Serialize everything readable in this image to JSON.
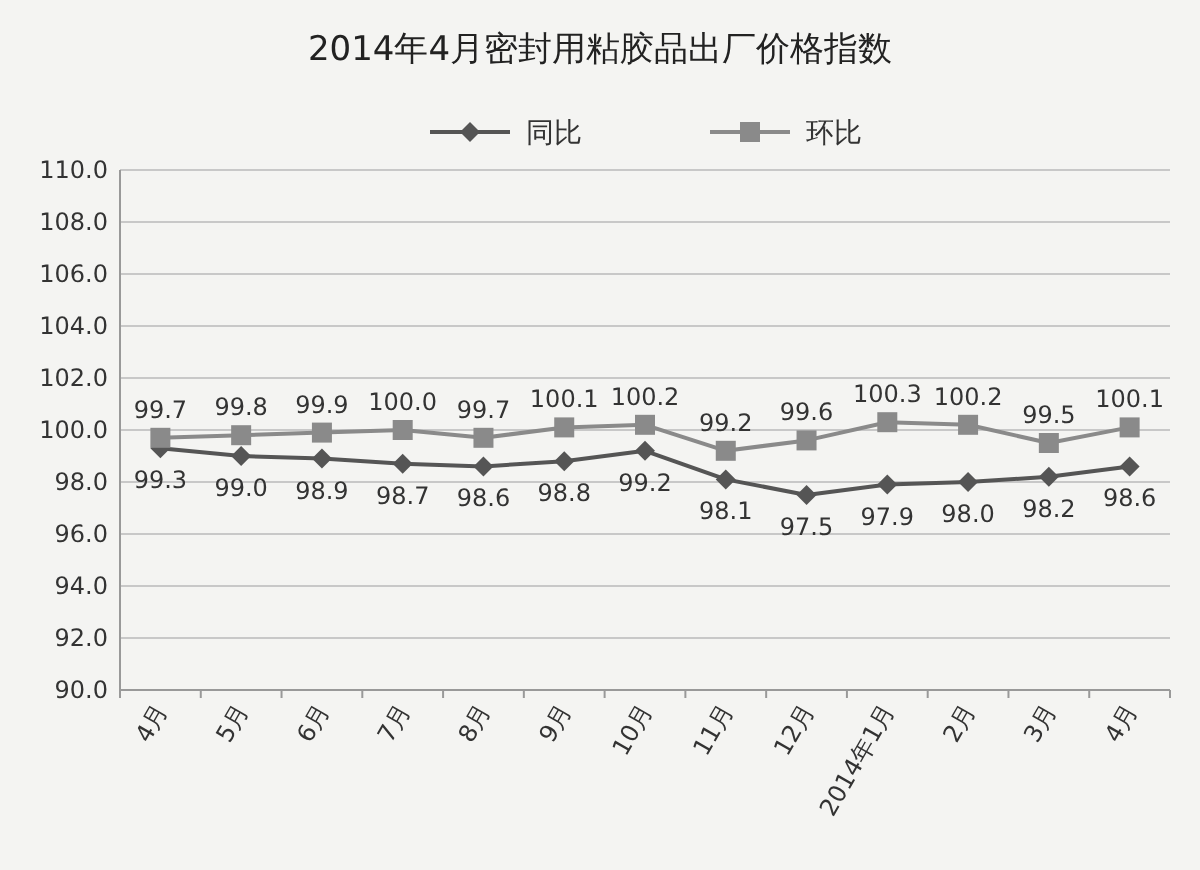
{
  "chart_data": {
    "type": "line",
    "title": "2014年4月密封用粘胶品出厂价格指数",
    "categories": [
      "4月",
      "5月",
      "6月",
      "7月",
      "8月",
      "9月",
      "10月",
      "11月",
      "12月",
      "2014年1月",
      "2月",
      "3月",
      "4月"
    ],
    "series": [
      {
        "name": "同比",
        "color": "#555555",
        "marker": "diamond",
        "values": [
          99.3,
          99.0,
          98.9,
          98.7,
          98.6,
          98.8,
          99.2,
          98.1,
          97.5,
          97.9,
          98.0,
          98.2,
          98.6
        ],
        "value_labels": [
          "99.3",
          "99.0",
          "98.9",
          "98.7",
          "98.6",
          "98.8",
          "99.2",
          "98.1",
          "97.5",
          "97.9",
          "98.0",
          "98.2",
          "98.6"
        ]
      },
      {
        "name": "环比",
        "color": "#8a8a8a",
        "marker": "square",
        "values": [
          99.7,
          99.8,
          99.9,
          100.0,
          99.7,
          100.1,
          100.2,
          99.2,
          99.6,
          100.3,
          100.2,
          99.5,
          100.1
        ],
        "value_labels": [
          "99.7",
          "99.8",
          "99.9",
          "100.0",
          "99.7",
          "100.1",
          "100.2",
          "99.2",
          "99.6",
          "100.3",
          "100.2",
          "99.5",
          "100.1"
        ]
      }
    ],
    "ylim": [
      90,
      110
    ],
    "yticks": [
      {
        "value": 90,
        "label": "90.0"
      },
      {
        "value": 92,
        "label": "92.0"
      },
      {
        "value": 94,
        "label": "94.0"
      },
      {
        "value": 96,
        "label": "96.0"
      },
      {
        "value": 98,
        "label": "98.0"
      },
      {
        "value": 100,
        "label": "100.0"
      },
      {
        "value": 102,
        "label": "102.0"
      },
      {
        "value": 104,
        "label": "104.0"
      },
      {
        "value": 106,
        "label": "106.0"
      },
      {
        "value": 108,
        "label": "108.0"
      },
      {
        "value": 110,
        "label": "110.0"
      }
    ],
    "grid": "y",
    "legend": "top",
    "line_style": "solid"
  }
}
